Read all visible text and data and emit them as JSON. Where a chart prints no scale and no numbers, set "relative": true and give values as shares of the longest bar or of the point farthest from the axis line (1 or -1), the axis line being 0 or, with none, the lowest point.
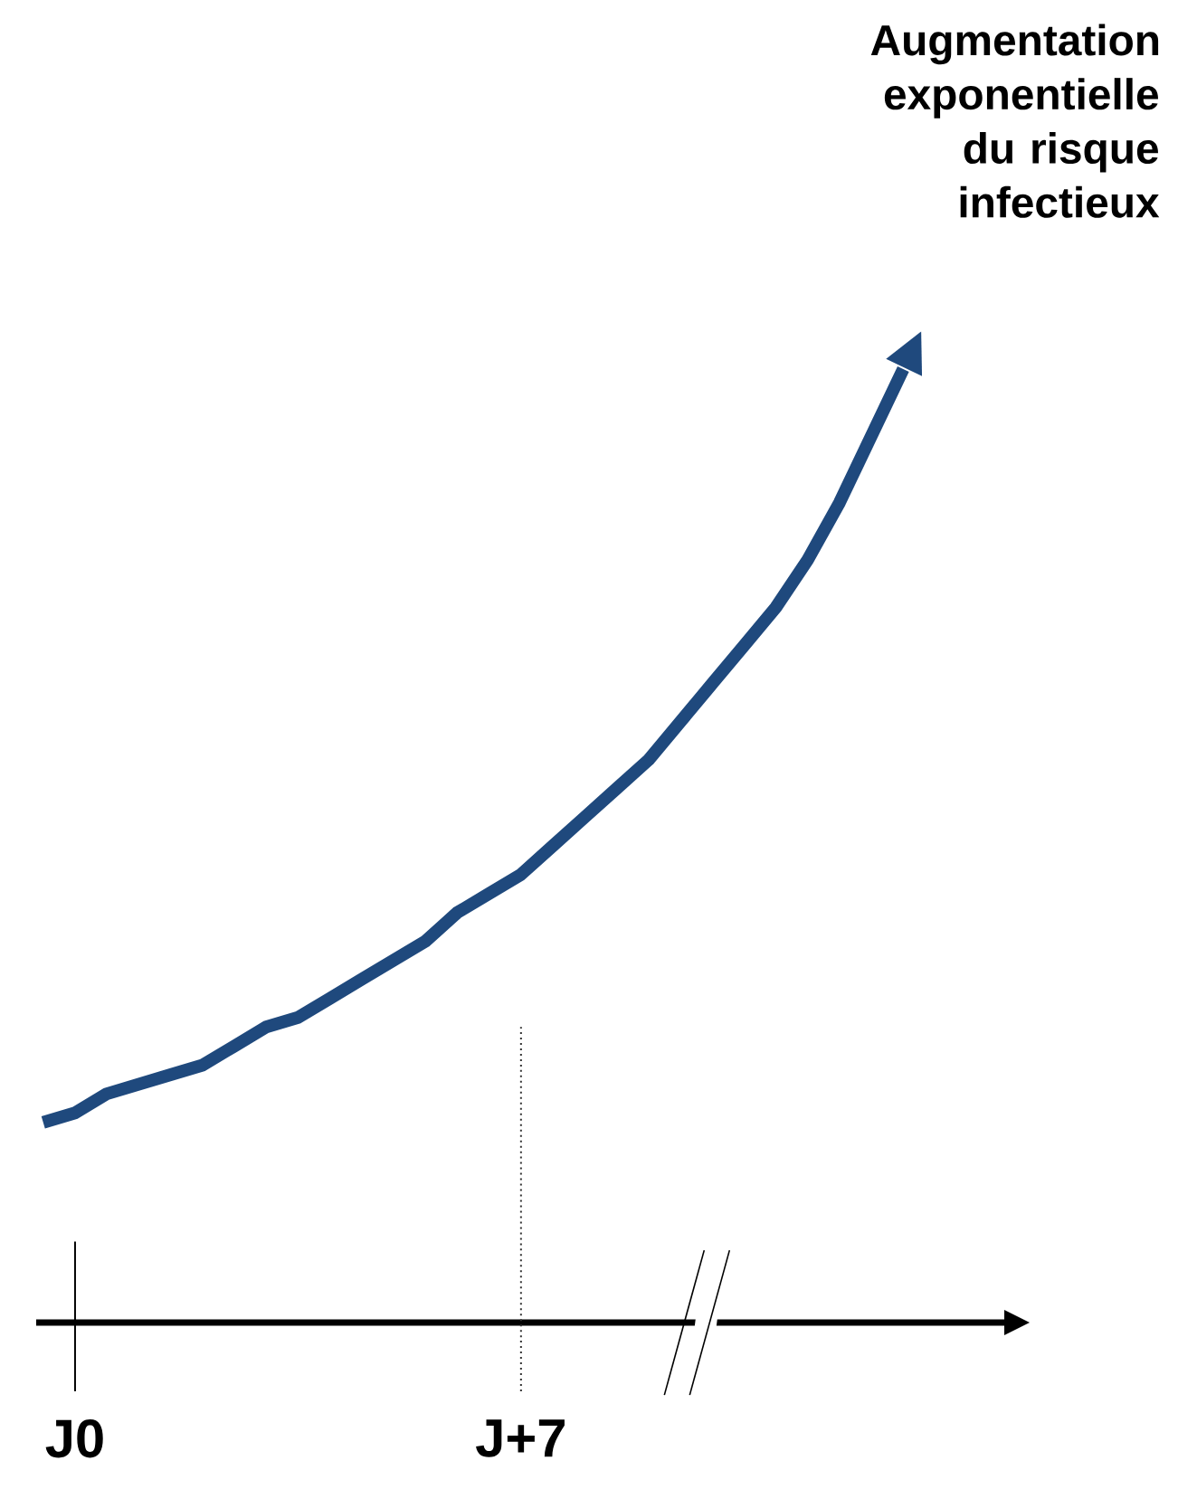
{
  "chart_data": {
    "type": "line",
    "relative": true,
    "marker": "none",
    "categories": [
      null,
      "J0",
      null,
      null,
      null,
      null,
      null,
      null,
      null,
      null,
      null,
      null,
      null,
      null,
      null,
      "J+7",
      null,
      null,
      null,
      null,
      null,
      null,
      null,
      null,
      null,
      null,
      null,
      null
    ],
    "series": [
      {
        "color": "#1f497d",
        "values": [
          0.21,
          0.22,
          0.24,
          0.25,
          0.26,
          0.27,
          0.29,
          0.31,
          0.32,
          0.34,
          0.36,
          0.38,
          0.4,
          0.43,
          0.45,
          0.47,
          0.5,
          0.53,
          0.56,
          0.59,
          0.63,
          0.67,
          0.71,
          0.75,
          0.8,
          0.86,
          0.93,
          1
        ]
      }
    ],
    "ref_lines": [
      {
        "axis": "x",
        "value": "J0",
        "color": "#000000",
        "line_style": "solid"
      },
      {
        "axis": "x",
        "value": "J+7",
        "color": "#333333",
        "line_style": "dotted"
      }
    ],
    "annotations": [
      "Augmentation exponentielle du risque infectieux"
    ]
  }
}
